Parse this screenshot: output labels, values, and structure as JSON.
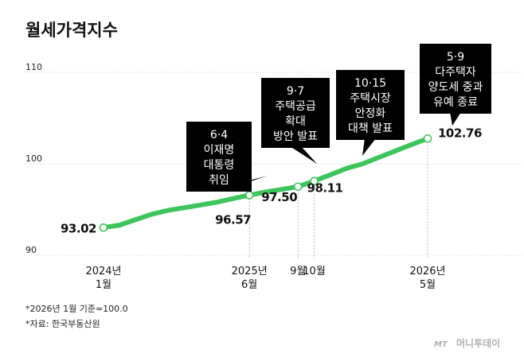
{
  "chart_data": {
    "type": "line",
    "title": "월세가격지수",
    "xlabel": "",
    "ylabel": "",
    "ylim": [
      90,
      110
    ],
    "yticks": [
      "110",
      "100",
      "90"
    ],
    "grid": true,
    "series": [
      {
        "color": "#3ec45c",
        "x": [
          "2024년 1월",
          "2024년 3월",
          "2024년 5월",
          "2024년 7월",
          "2024년 9월",
          "2024년 11월",
          "2025년 1월",
          "2025년 3월",
          "2025년 5월",
          "2025년 6월",
          "2025년 7월",
          "2025년 8월",
          "2025년 9월",
          "2025년 10월",
          "2025년 11월",
          "2025년 12월",
          "2026년 1월",
          "2026년 2월",
          "2026년 3월",
          "2026년 4월",
          "2026년 5월"
        ],
        "values": [
          93.02,
          93.3,
          93.9,
          94.5,
          94.9,
          95.2,
          95.5,
          95.8,
          96.2,
          96.57,
          96.9,
          97.2,
          97.5,
          98.11,
          98.8,
          99.5,
          100.0,
          100.7,
          101.4,
          102.1,
          102.76
        ]
      }
    ],
    "xticks": [
      {
        "index": 0,
        "lines": [
          "2024년",
          "1월"
        ]
      },
      {
        "index": 9,
        "lines": [
          "2025년",
          "6월"
        ]
      },
      {
        "index": 12,
        "lines": [
          "9월"
        ]
      },
      {
        "index": 13,
        "lines": [
          "10월"
        ]
      },
      {
        "index": 20,
        "lines": [
          "2026년",
          "5월"
        ]
      }
    ],
    "value_labels": [
      {
        "index": 0,
        "text": "93.02"
      },
      {
        "index": 9,
        "text": "96.57"
      },
      {
        "index": 12,
        "text": "97.50"
      },
      {
        "index": 13,
        "text": "98.11"
      },
      {
        "index": 20,
        "text": "102.76"
      }
    ],
    "annotations": [
      {
        "index": 9,
        "lines": [
          "6·4",
          "이재명",
          "대통령",
          "취임"
        ]
      },
      {
        "index": 12,
        "lines": [
          "9·7",
          "주택공급",
          "확대",
          "방안 발표"
        ]
      },
      {
        "index": 13,
        "lines": [
          "10·15",
          "주택시장",
          "안정화",
          "대책 발표"
        ]
      },
      {
        "index": 20,
        "lines": [
          "5·9",
          "다주택자",
          "양도세 중과",
          "유예 종료"
        ]
      }
    ]
  },
  "notes": [
    "*2026년 1월 기준=100.0",
    "*자료: 한국부동산원"
  ],
  "logo": {
    "mark": "MT",
    "text": "머니투데이"
  }
}
